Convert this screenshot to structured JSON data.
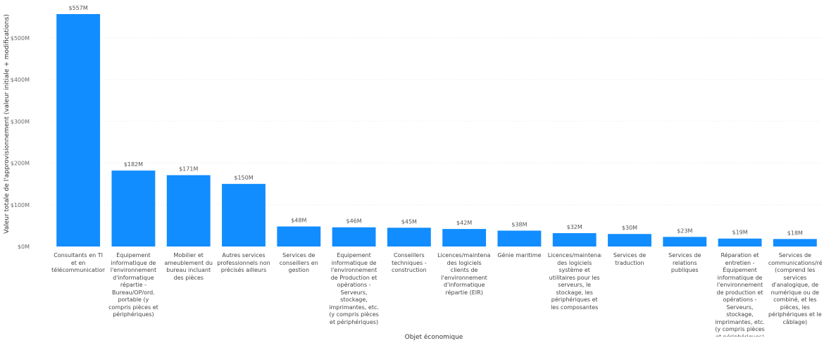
{
  "chart_data": {
    "type": "bar",
    "xlabel": "Objet économique",
    "ylabel": "Valeur totale de l'approvisionnement (valeur initiale + modifications)",
    "ylim": [
      0,
      600
    ],
    "yticks": [
      0,
      100,
      200,
      300,
      400,
      500
    ],
    "ytick_labels": [
      "$0M",
      "$100M",
      "$200M",
      "$300M",
      "$400M",
      "$500M"
    ],
    "bar_color": "#118DFF",
    "grid": true,
    "categories": [
      "Consultants en TI et en télécommunications",
      "Équipement informatique de l'environnement d'informatique répartie - Bureau/OP/ord. portable (y compris pièces et périphériques)",
      "Mobilier et ameublement du bureau incluant des pièces",
      "Autres services professionnels non précisés ailleurs",
      "Services de conseillers en gestion",
      "Équipement informatique de l'environnement de Production et opérations - Serveurs, stockage, imprimantes, etc. (y compris pièces et périphériques)",
      "Conseillers techniques - construction",
      "Licences/maintenan... des logiciels clients de l'environnement d'informatique répartie (EIR)",
      "Génie maritime",
      "Licences/maintenan... des logiciels système et utilitaires pour les serveurs, le stockage, les périphériques et les composantes",
      "Services de traduction",
      "Services de relations publiques",
      "Réparation et entretien - Équipement informatique de l'environnement de production et opérations - Serveurs, stockage, imprimantes, etc. (y compris pièces et périphériques)",
      "Services de communications/ré... (comprend les services d'analogique, de numérique ou de combiné, et les pièces, les périphériques et le câblage)"
    ],
    "values": [
      557,
      182,
      171,
      150,
      48,
      46,
      45,
      42,
      38,
      32,
      30,
      23,
      19,
      18
    ],
    "data_labels": [
      "$557M",
      "$182M",
      "$171M",
      "$150M",
      "$48M",
      "$46M",
      "$45M",
      "$42M",
      "$38M",
      "$32M",
      "$30M",
      "$23M",
      "$19M",
      "$18M"
    ]
  }
}
